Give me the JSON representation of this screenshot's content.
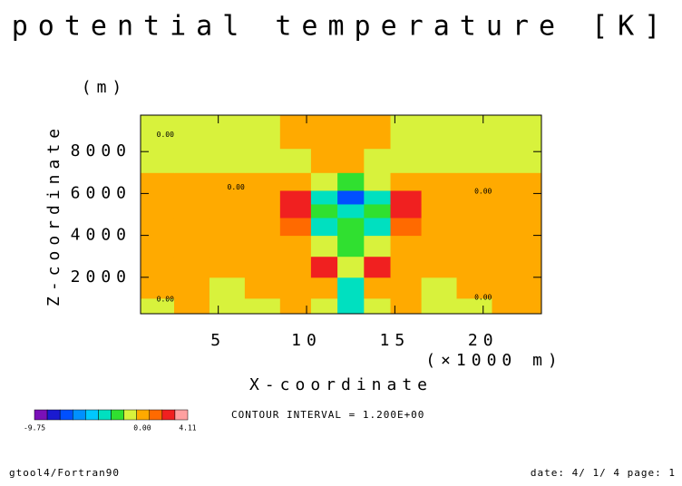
{
  "chart_data": {
    "type": "contour",
    "title": "potential temperature [K]",
    "y_unit": "(m)",
    "ylabel": "Z-coordinate",
    "xlabel": "X-coordinate",
    "x_unit": "(×1000 m)",
    "xlim": [
      0.6,
      23.3
    ],
    "ylim": [
      260,
      9740
    ],
    "xticks": [
      5,
      10,
      15,
      20
    ],
    "yticks": [
      2000,
      4000,
      6000,
      8000
    ],
    "x": [
      1.5,
      3.5,
      5.5,
      7.5,
      9.5,
      11,
      12.5,
      14,
      15.5,
      17.5,
      19.5,
      21.5
    ],
    "z": [
      500,
      1500,
      2500,
      3500,
      4500,
      5200,
      5800,
      6500,
      7500,
      8800
    ],
    "values": [
      [
        -0.6,
        0.5,
        -0.6,
        -0.6,
        0.5,
        -0.6,
        -3.5,
        -0.6,
        0.5,
        -0.6,
        -0.6,
        0.5
      ],
      [
        0.5,
        0.5,
        -0.6,
        0.5,
        0.5,
        0.5,
        -2.5,
        0.5,
        0.5,
        -0.6,
        0.5,
        0.5
      ],
      [
        0.5,
        0.5,
        0.5,
        0.5,
        0.5,
        2.5,
        -0.6,
        2.5,
        0.5,
        0.5,
        0.5,
        0.5
      ],
      [
        0.5,
        0.5,
        0.5,
        0.5,
        0.5,
        -0.6,
        -1.8,
        -0.6,
        0.5,
        0.5,
        0.5,
        0.5
      ],
      [
        0.5,
        0.5,
        0.5,
        0.5,
        1.5,
        -2.5,
        -1.8,
        -2.5,
        1.5,
        0.5,
        0.5,
        0.5
      ],
      [
        0.5,
        0.5,
        0.5,
        0.5,
        3.5,
        -1.8,
        -2.5,
        -1.8,
        3.5,
        0.5,
        0.5,
        0.5
      ],
      [
        0.5,
        0.5,
        0.5,
        0.5,
        2.5,
        -2.5,
        -6.5,
        -2.5,
        2.5,
        0.5,
        0.5,
        0.5
      ],
      [
        0.5,
        0.5,
        0.5,
        0.5,
        0.5,
        -0.6,
        -1.8,
        -0.6,
        0.5,
        0.5,
        0.5,
        0.5
      ],
      [
        -0.6,
        -0.6,
        -0.6,
        -0.6,
        -0.6,
        0.5,
        0.5,
        -0.6,
        -0.6,
        -0.6,
        -0.6,
        -0.6
      ],
      [
        -0.6,
        -0.6,
        -0.6,
        -0.6,
        0.5,
        0.5,
        0.5,
        0.5,
        -0.6,
        -0.6,
        -0.6,
        -0.6
      ]
    ],
    "levels": [
      -8.4,
      -7.2,
      -6,
      -4.8,
      -3.6,
      -2.4,
      -1.2,
      0,
      1.2,
      2.4,
      3.6
    ],
    "colors": [
      "#7a10b8",
      "#1a1ad0",
      "#0050ff",
      "#0090ff",
      "#00c8ff",
      "#00e0c0",
      "#30e030",
      "#d8f23c",
      "#ffaa00",
      "#ff6a00",
      "#f02020",
      "#ffa0a0"
    ],
    "contour_label": "0.00",
    "colorbar_ticks": [
      -9.75,
      {
        "value": 0,
        "label": "0.00"
      },
      4.11
    ],
    "contour_interval": "CONTOUR INTERVAL = 1.200E+00",
    "footer_left": "gtool4/Fortran90",
    "footer_right": "date: 4/ 1/ 4 page: 1"
  }
}
